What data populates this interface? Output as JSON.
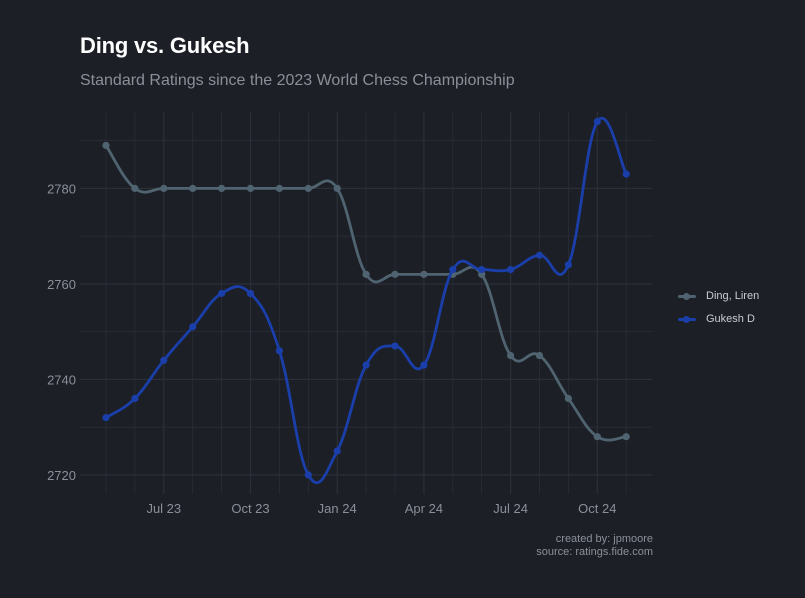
{
  "title": "Ding vs. Gukesh",
  "subtitle": "Standard Ratings since the 2023 World Chess Championship",
  "caption": {
    "line1": "created by: jpmoore",
    "line2": "source: ratings.fide.com"
  },
  "colors": {
    "background": "#1c1f26",
    "grid": "#2b2f38",
    "ding": "#4f6470",
    "gukesh": "#1a3faa",
    "axis_text": "#8a8f99"
  },
  "chart_data": {
    "type": "line",
    "x": [
      "2023-05",
      "2023-06",
      "2023-07",
      "2023-08",
      "2023-09",
      "2023-10",
      "2023-11",
      "2023-12",
      "2024-01",
      "2024-02",
      "2024-03",
      "2024-04",
      "2024-05",
      "2024-06",
      "2024-07",
      "2024-08",
      "2024-09",
      "2024-10",
      "2024-11"
    ],
    "x_ticks": [
      {
        "x": "2023-07",
        "label": "Jul 23"
      },
      {
        "x": "2023-10",
        "label": "Oct 23"
      },
      {
        "x": "2024-01",
        "label": "Jan 24"
      },
      {
        "x": "2024-04",
        "label": "Apr 24"
      },
      {
        "x": "2024-07",
        "label": "Jul 24"
      },
      {
        "x": "2024-10",
        "label": "Oct 24"
      }
    ],
    "y_ticks": [
      2720,
      2740,
      2760,
      2780
    ],
    "ylim": [
      2716,
      2796
    ],
    "grid": true,
    "legend_position": "right",
    "series": [
      {
        "name": "Ding, Liren",
        "values": [
          2789,
          2780,
          2780,
          2780,
          2780,
          2780,
          2780,
          2780,
          2780,
          2762,
          2762,
          2762,
          2762,
          2762,
          2745,
          2745,
          2736,
          2728,
          2728
        ]
      },
      {
        "name": "Gukesh D",
        "values": [
          2732,
          2736,
          2744,
          2751,
          2758,
          2758,
          2746,
          2720,
          2725,
          2743,
          2747,
          2743,
          2763,
          2763,
          2763,
          2766,
          2764,
          2794,
          2783
        ]
      }
    ]
  }
}
